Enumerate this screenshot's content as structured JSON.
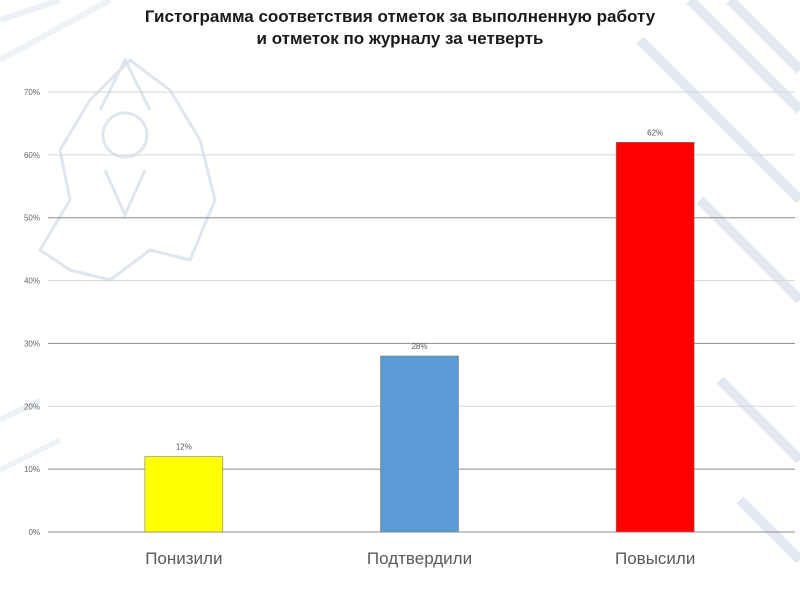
{
  "title_lines": [
    "Гистограмма соответствия отметок за выполненную работу",
    "и отметок по журналу за четверть"
  ],
  "chart_data": {
    "type": "bar",
    "title": "Гистограмма соответствия отметок за выполненную работу и отметок по журналу за четверть",
    "categories": [
      "Понизили",
      "Подтвердили",
      "Повысили"
    ],
    "values": [
      12,
      28,
      62
    ],
    "data_labels": [
      "12%",
      "28%",
      "62%"
    ],
    "colors": [
      "#ffff00",
      "#5b9bd5",
      "#ff0000"
    ],
    "ylim": [
      0,
      70
    ],
    "yticks": [
      "0%",
      "10%",
      "20%",
      "30%",
      "40%",
      "50%",
      "60%",
      "70%"
    ],
    "grid": true,
    "legend": "none"
  }
}
